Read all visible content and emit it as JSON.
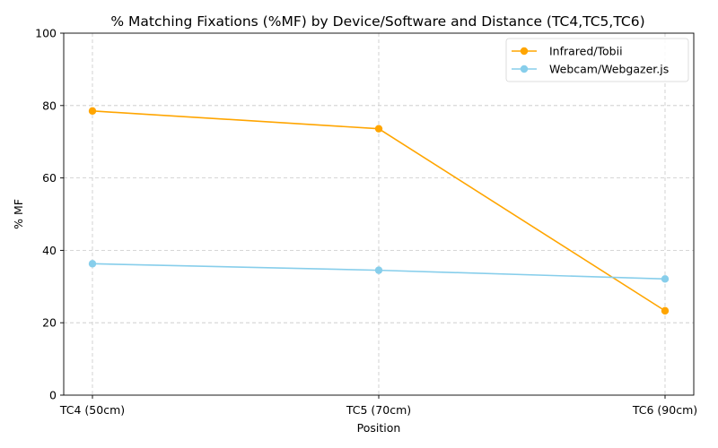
{
  "chart_data": {
    "type": "line",
    "title": "% Matching Fixations (%MF) by Device/Software and Distance (TC4,TC5,TC6)",
    "xlabel": "Position",
    "ylabel": "% MF",
    "categories": [
      "TC4 (50cm)",
      "TC5 (70cm)",
      "TC6 (90cm)"
    ],
    "ylim": [
      0,
      100
    ],
    "yticks": [
      0,
      20,
      40,
      60,
      80,
      100
    ],
    "grid": true,
    "legend_position": "top-right",
    "series": [
      {
        "name": "Infrared/Tobii",
        "color": "#ffa500",
        "values": [
          78.5,
          73.6,
          23.3
        ]
      },
      {
        "name": "Webcam/Webgazer.js",
        "color": "#87ceeb",
        "values": [
          36.3,
          34.5,
          32.1
        ]
      }
    ]
  }
}
